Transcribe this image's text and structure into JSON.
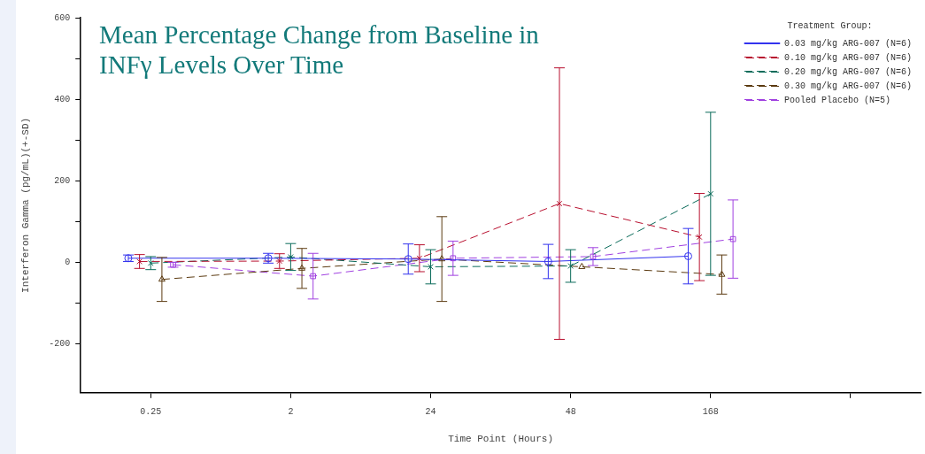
{
  "chart_data": {
    "type": "line",
    "title": "Mean Percentage Change from Baseline in INFγ Levels Over Time",
    "xlabel": "Time Point (Hours)",
    "ylabel": "Interferon Gamma (pg/mL)(+-SD)",
    "legend_title": "Treatment Group:",
    "categories": [
      "0.25",
      "2",
      "24",
      "48",
      "168",
      null
    ],
    "ylim": [
      -320,
      600
    ],
    "yticks": [
      {
        "value": -200,
        "label": "-200"
      },
      {
        "value": -100,
        "label": null
      },
      {
        "value": 0,
        "label": "0"
      },
      {
        "value": 100,
        "label": null
      },
      {
        "value": 200,
        "label": "200"
      },
      {
        "value": 300,
        "label": null
      },
      {
        "value": 400,
        "label": "400"
      },
      {
        "value": 500,
        "label": null
      },
      {
        "value": 600,
        "label": "600"
      }
    ],
    "grid": false,
    "legend": "top right",
    "series": [
      {
        "name": "0.03 mg/kg ARG-007 (N=6)",
        "color": "#3333ee",
        "marker": "circle",
        "line_style": "solid",
        "values": [
          10,
          10,
          8,
          2,
          15,
          null
        ],
        "errors": [
          8,
          12,
          37,
          42,
          68,
          null
        ]
      },
      {
        "name": "0.10 mg/kg ARG-007 (N=6)",
        "color": "#b8102f",
        "marker": "cross",
        "line_style": "dashed",
        "values": [
          2,
          3,
          10,
          144,
          62,
          null
        ],
        "errors": [
          17,
          18,
          33,
          333,
          107,
          null
        ]
      },
      {
        "name": "0.20 mg/kg ARG-007 (N=6)",
        "color": "#0a6b5a",
        "marker": "cross",
        "line_style": "dashed",
        "values": [
          -2,
          13,
          -11,
          -9,
          168,
          null
        ],
        "errors": [
          16,
          33,
          42,
          40,
          200,
          null
        ]
      },
      {
        "name": "0.30 mg/kg ARG-007 (N=6)",
        "color": "#5b3a10",
        "marker": "triangle",
        "line_style": "dashed",
        "values": [
          -42,
          -15,
          8,
          -11,
          -30,
          null
        ],
        "errors": [
          54,
          49,
          104,
          null,
          48,
          null
        ]
      },
      {
        "name": "Pooled Placebo (N=5)",
        "color": "#a040e0",
        "marker": "square",
        "line_style": "dashed",
        "values": [
          -6,
          -34,
          10,
          14,
          57,
          null
        ],
        "errors": [
          6,
          56,
          42,
          22,
          96,
          null
        ]
      }
    ]
  }
}
